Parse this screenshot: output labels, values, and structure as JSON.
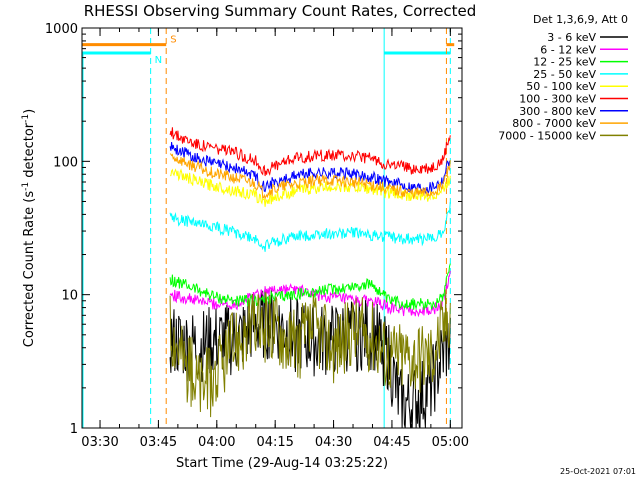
{
  "chart_data": {
    "type": "line",
    "title": "RHESSI Observing Summary Count Rates, Corrected",
    "xlabel": "Start Time (29-Aug-14 03:25:22)",
    "ylabel": "Corrected Count Rate (s",
    "ylabel_sup1": "-1",
    "ylabel_mid": " detector",
    "ylabel_sup2": "-1",
    "ylabel_end": ")",
    "y_scale": "log",
    "ylim": [
      1,
      1000
    ],
    "xlim": [
      "03:25:22",
      "05:03:00"
    ],
    "x_ticks": [
      "03:30",
      "03:45",
      "04:00",
      "04:15",
      "04:30",
      "04:45",
      "05:00"
    ],
    "y_ticks": [
      "1",
      "10",
      "100",
      "1000"
    ],
    "footer": "25-Oct-2021 07:01",
    "legend_header": "Det 1,3,6,9, Att 0",
    "legend_position": "top-right",
    "series": [
      {
        "name": "3 - 6 keV",
        "color": "#000000",
        "points": [
          [
            "03:48",
            4.5
          ],
          [
            "03:55",
            4.0
          ],
          [
            "04:00",
            4.5
          ],
          [
            "04:05",
            4.5
          ],
          [
            "04:10",
            6.0
          ],
          [
            "04:15",
            6.0
          ],
          [
            "04:20",
            5.0
          ],
          [
            "04:25",
            4.5
          ],
          [
            "04:30",
            4.5
          ],
          [
            "04:35",
            5.0
          ],
          [
            "04:40",
            5.0
          ],
          [
            "04:44",
            3.5
          ],
          [
            "04:47",
            1.5
          ],
          [
            "04:50",
            1.5
          ],
          [
            "04:55",
            2.0
          ],
          [
            "04:58",
            3.5
          ],
          [
            "05:00",
            4.5
          ]
        ]
      },
      {
        "name": "6 - 12 keV",
        "color": "#ff00ff",
        "points": [
          [
            "03:48",
            10.0
          ],
          [
            "03:55",
            9.0
          ],
          [
            "04:00",
            8.5
          ],
          [
            "04:05",
            8.5
          ],
          [
            "04:10",
            10.0
          ],
          [
            "04:15",
            11.0
          ],
          [
            "04:20",
            11.0
          ],
          [
            "04:25",
            10.0
          ],
          [
            "04:30",
            9.5
          ],
          [
            "04:35",
            9.0
          ],
          [
            "04:40",
            9.0
          ],
          [
            "04:44",
            8.0
          ],
          [
            "04:50",
            7.5
          ],
          [
            "04:55",
            7.5
          ],
          [
            "04:58",
            8.5
          ],
          [
            "05:00",
            15.0
          ]
        ]
      },
      {
        "name": "12 - 25 keV",
        "color": "#00ff00",
        "points": [
          [
            "03:48",
            13.0
          ],
          [
            "03:55",
            11.0
          ],
          [
            "04:00",
            9.5
          ],
          [
            "04:05",
            9.0
          ],
          [
            "04:10",
            9.0
          ],
          [
            "04:15",
            9.5
          ],
          [
            "04:20",
            10.0
          ],
          [
            "04:25",
            10.5
          ],
          [
            "04:30",
            11.0
          ],
          [
            "04:35",
            11.5
          ],
          [
            "04:40",
            12.0
          ],
          [
            "04:44",
            9.0
          ],
          [
            "04:50",
            8.5
          ],
          [
            "04:55",
            8.5
          ],
          [
            "04:58",
            9.5
          ],
          [
            "05:00",
            18.0
          ]
        ]
      },
      {
        "name": "25 - 50 keV",
        "color": "#00ffff",
        "points": [
          [
            "03:48",
            38.0
          ],
          [
            "03:55",
            34.0
          ],
          [
            "04:00",
            32.0
          ],
          [
            "04:05",
            29.0
          ],
          [
            "04:10",
            26.0
          ],
          [
            "04:12",
            23.0
          ],
          [
            "04:15",
            25.0
          ],
          [
            "04:20",
            27.0
          ],
          [
            "04:25",
            28.0
          ],
          [
            "04:30",
            29.0
          ],
          [
            "04:35",
            29.0
          ],
          [
            "04:40",
            28.0
          ],
          [
            "04:44",
            27.0
          ],
          [
            "04:50",
            26.0
          ],
          [
            "04:55",
            26.0
          ],
          [
            "04:58",
            30.0
          ],
          [
            "05:00",
            45.0
          ]
        ]
      },
      {
        "name": "50 - 100 keV",
        "color": "#ffff00",
        "points": [
          [
            "03:48",
            85.0
          ],
          [
            "03:55",
            70.0
          ],
          [
            "04:00",
            65.0
          ],
          [
            "04:05",
            60.0
          ],
          [
            "04:10",
            55.0
          ],
          [
            "04:12",
            50.0
          ],
          [
            "04:15",
            54.0
          ],
          [
            "04:20",
            60.0
          ],
          [
            "04:25",
            63.0
          ],
          [
            "04:30",
            65.0
          ],
          [
            "04:35",
            64.0
          ],
          [
            "04:40",
            62.0
          ],
          [
            "04:44",
            58.0
          ],
          [
            "04:50",
            55.0
          ],
          [
            "04:55",
            55.0
          ],
          [
            "04:58",
            60.0
          ],
          [
            "05:00",
            75.0
          ]
        ]
      },
      {
        "name": "100 - 300 keV",
        "color": "#ff0000",
        "points": [
          [
            "03:48",
            165.0
          ],
          [
            "03:55",
            135.0
          ],
          [
            "04:00",
            125.0
          ],
          [
            "04:05",
            115.0
          ],
          [
            "04:10",
            100.0
          ],
          [
            "04:12",
            85.0
          ],
          [
            "04:15",
            92.0
          ],
          [
            "04:20",
            105.0
          ],
          [
            "04:25",
            110.0
          ],
          [
            "04:30",
            112.0
          ],
          [
            "04:35",
            110.0
          ],
          [
            "04:40",
            105.0
          ],
          [
            "04:44",
            95.0
          ],
          [
            "04:50",
            88.0
          ],
          [
            "04:55",
            88.0
          ],
          [
            "04:58",
            100.0
          ],
          [
            "05:00",
            160.0
          ]
        ]
      },
      {
        "name": "300 - 800 keV",
        "color": "#0000ff",
        "points": [
          [
            "03:48",
            130.0
          ],
          [
            "03:55",
            105.0
          ],
          [
            "04:00",
            95.0
          ],
          [
            "04:05",
            88.0
          ],
          [
            "04:10",
            78.0
          ],
          [
            "04:12",
            65.0
          ],
          [
            "04:15",
            70.0
          ],
          [
            "04:20",
            78.0
          ],
          [
            "04:25",
            82.0
          ],
          [
            "04:30",
            82.0
          ],
          [
            "04:35",
            80.0
          ],
          [
            "04:40",
            76.0
          ],
          [
            "04:44",
            70.0
          ],
          [
            "04:50",
            64.0
          ],
          [
            "04:55",
            64.0
          ],
          [
            "04:58",
            72.0
          ],
          [
            "05:00",
            110.0
          ]
        ]
      },
      {
        "name": "800 - 7000 keV",
        "color": "#ffa500",
        "points": [
          [
            "03:48",
            110.0
          ],
          [
            "03:55",
            90.0
          ],
          [
            "04:00",
            80.0
          ],
          [
            "04:05",
            75.0
          ],
          [
            "04:10",
            68.0
          ],
          [
            "04:12",
            58.0
          ],
          [
            "04:15",
            62.0
          ],
          [
            "04:20",
            68.0
          ],
          [
            "04:25",
            72.0
          ],
          [
            "04:30",
            72.0
          ],
          [
            "04:35",
            70.0
          ],
          [
            "04:40",
            67.0
          ],
          [
            "04:44",
            62.0
          ],
          [
            "04:50",
            58.0
          ],
          [
            "04:55",
            58.0
          ],
          [
            "04:58",
            65.0
          ],
          [
            "05:00",
            95.0
          ]
        ]
      },
      {
        "name": "7000 - 15000 keV",
        "color": "#808000",
        "points": [
          [
            "03:48",
            6.0
          ],
          [
            "03:52",
            3.0
          ],
          [
            "03:56",
            2.0
          ],
          [
            "04:00",
            2.5
          ],
          [
            "04:05",
            4.5
          ],
          [
            "04:10",
            5.5
          ],
          [
            "04:15",
            6.0
          ],
          [
            "04:20",
            4.0
          ],
          [
            "04:25",
            5.5
          ],
          [
            "04:30",
            4.0
          ],
          [
            "04:35",
            5.5
          ],
          [
            "04:40",
            5.0
          ],
          [
            "04:44",
            3.5
          ],
          [
            "04:50",
            3.5
          ],
          [
            "04:55",
            3.5
          ],
          [
            "04:58",
            5.5
          ],
          [
            "05:00",
            8.0
          ]
        ]
      }
    ],
    "flags": [
      {
        "label": "N",
        "color": "#00ffff",
        "ranges": [
          [
            "03:25:22",
            "03:43"
          ],
          [
            "04:43",
            "05:00"
          ]
        ],
        "level": 650,
        "markers": [
          "03:43",
          "04:43",
          "05:00"
        ]
      },
      {
        "label": "S",
        "color": "#ff8c00",
        "ranges": [
          [
            "03:25:22",
            "03:47"
          ],
          [
            "04:59",
            "05:01"
          ]
        ],
        "level": 750,
        "markers": [
          "03:47",
          "04:59"
        ]
      }
    ]
  }
}
